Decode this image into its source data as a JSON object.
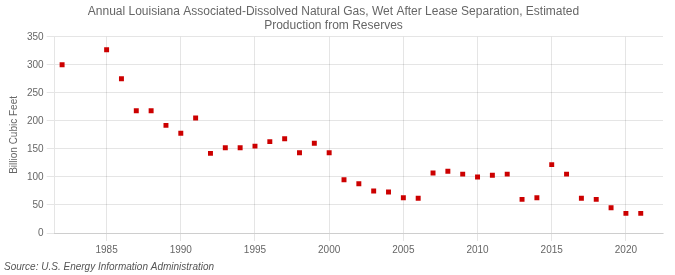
{
  "chart_data": {
    "type": "scatter",
    "title": "Annual Louisiana Associated-Dissolved Natural Gas, Wet After Lease Separation, Estimated\nProduction from Reserves",
    "y_label": "Billion Cubic Feet",
    "annotations": [
      "Source: U.S. Energy Information Administration"
    ],
    "x": [
      1982,
      1985,
      1986,
      1987,
      1988,
      1989,
      1990,
      1991,
      1992,
      1993,
      1994,
      1995,
      1996,
      1997,
      1998,
      1999,
      2000,
      2001,
      2002,
      2003,
      2004,
      2005,
      2006,
      2007,
      2008,
      2009,
      2010,
      2011,
      2012,
      2013,
      2014,
      2015,
      2016,
      2017,
      2018,
      2019,
      2020,
      2021
    ],
    "values": [
      300,
      327,
      275,
      218,
      218,
      192,
      178,
      205,
      142,
      152,
      152,
      155,
      163,
      168,
      143,
      160,
      143,
      95,
      88,
      75,
      73,
      63,
      62,
      107,
      110,
      105,
      100,
      103,
      105,
      60,
      63,
      122,
      105,
      62,
      60,
      45,
      35,
      35
    ],
    "color": "#cc0000",
    "marker": "square",
    "xlim": [
      1981.5,
      2022.5
    ],
    "xticks": [
      1985,
      1990,
      1995,
      2000,
      2005,
      2010,
      2015,
      2020
    ],
    "ylim": [
      0,
      350
    ],
    "yticks": [
      0,
      50,
      100,
      150,
      200,
      250,
      300,
      350
    ],
    "grid": true
  }
}
